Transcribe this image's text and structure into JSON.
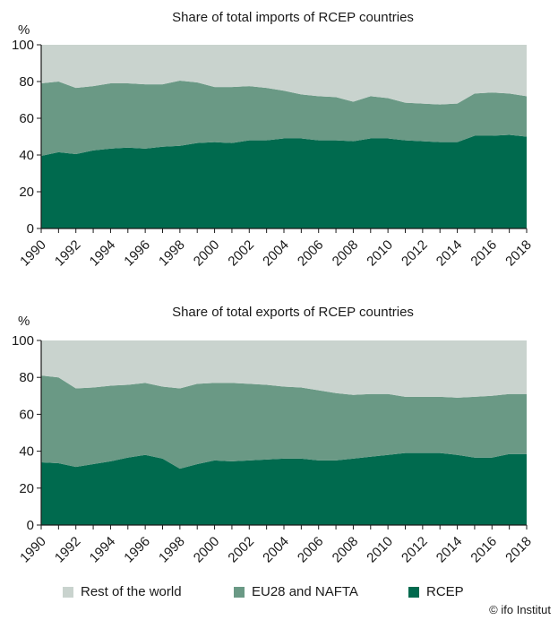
{
  "chart_data": [
    {
      "type": "area",
      "stacked": true,
      "title": "Share of total imports of RCEP countries",
      "ylabel": "%",
      "ylim": [
        0,
        100
      ],
      "yticks": [
        0,
        20,
        40,
        60,
        80,
        100
      ],
      "x": [
        1990,
        1991,
        1992,
        1993,
        1994,
        1995,
        1996,
        1997,
        1998,
        1999,
        2000,
        2001,
        2002,
        2003,
        2004,
        2005,
        2006,
        2007,
        2008,
        2009,
        2010,
        2011,
        2012,
        2013,
        2014,
        2015,
        2016,
        2017,
        2018
      ],
      "xtick_labels": [
        "1990",
        "1992",
        "1994",
        "1996",
        "1998",
        "2000",
        "2002",
        "2004",
        "2006",
        "2008",
        "2010",
        "2012",
        "2014",
        "2016",
        "2018"
      ],
      "series": [
        {
          "name": "RCEP",
          "values": [
            39.5,
            41.5,
            40.5,
            42.5,
            43.5,
            44,
            43.5,
            44.5,
            45,
            46.5,
            47,
            46.5,
            48,
            48,
            49,
            49,
            48,
            48,
            47.5,
            49,
            49,
            48,
            47.5,
            47,
            47,
            50.5,
            50.5,
            51,
            50
          ]
        },
        {
          "name": "EU28 and NAFTA",
          "values": [
            39.5,
            38.5,
            36,
            35,
            35.5,
            35,
            35,
            34,
            35.5,
            33,
            30,
            30.5,
            29.5,
            28.5,
            26,
            24,
            24,
            23.5,
            21.5,
            23,
            22,
            20.5,
            20.5,
            20.5,
            21,
            23,
            23.5,
            22.5,
            22
          ]
        },
        {
          "name": "Rest of the world",
          "values": [
            21,
            20,
            23.5,
            22.5,
            21,
            21,
            21.5,
            21.5,
            19.5,
            20.5,
            23,
            23,
            22.5,
            23.5,
            25,
            27,
            28,
            28.5,
            31,
            28,
            29,
            31.5,
            32,
            32.5,
            32,
            26.5,
            26,
            26.5,
            28
          ]
        }
      ]
    },
    {
      "type": "area",
      "stacked": true,
      "title": "Share of total exports of RCEP countries",
      "ylabel": "%",
      "ylim": [
        0,
        100
      ],
      "yticks": [
        0,
        20,
        40,
        60,
        80,
        100
      ],
      "x": [
        1990,
        1991,
        1992,
        1993,
        1994,
        1995,
        1996,
        1997,
        1998,
        1999,
        2000,
        2001,
        2002,
        2003,
        2004,
        2005,
        2006,
        2007,
        2008,
        2009,
        2010,
        2011,
        2012,
        2013,
        2014,
        2015,
        2016,
        2017,
        2018
      ],
      "xtick_labels": [
        "1990",
        "1992",
        "1994",
        "1996",
        "1998",
        "2000",
        "2002",
        "2004",
        "2006",
        "2008",
        "2010",
        "2012",
        "2014",
        "2016",
        "2018"
      ],
      "series": [
        {
          "name": "RCEP",
          "values": [
            34,
            33.5,
            31.5,
            33,
            34.5,
            36.5,
            38,
            36,
            30.5,
            33,
            35,
            34.5,
            35,
            35.5,
            36,
            36,
            35,
            35,
            36,
            37,
            38,
            39,
            39,
            39,
            38,
            36.5,
            36.5,
            38.5,
            38.5
          ]
        },
        {
          "name": "EU28 and NAFTA",
          "values": [
            47,
            46.5,
            42.5,
            41.5,
            41,
            39.5,
            39,
            39,
            43.5,
            43.5,
            42,
            42.5,
            41.5,
            40.5,
            39,
            38.5,
            38,
            36.5,
            34.5,
            34,
            33,
            30.5,
            30.5,
            30.5,
            31,
            33,
            33.5,
            32.5,
            32.5
          ]
        },
        {
          "name": "Rest of the world",
          "values": [
            19,
            20,
            26,
            25.5,
            24.5,
            24,
            23,
            25,
            26,
            23.5,
            23,
            23,
            23.5,
            24,
            25,
            25.5,
            27,
            28.5,
            29.5,
            29,
            29,
            30.5,
            30.5,
            30.5,
            31,
            30.5,
            30,
            29,
            29
          ]
        }
      ]
    }
  ],
  "legend": [
    {
      "label": "Rest of the world",
      "color": "#c9d3ce"
    },
    {
      "label": "EU28 and NAFTA",
      "color": "#6a9985"
    },
    {
      "label": "RCEP",
      "color": "#006a4e"
    }
  ],
  "credit": "© ifo Institut"
}
